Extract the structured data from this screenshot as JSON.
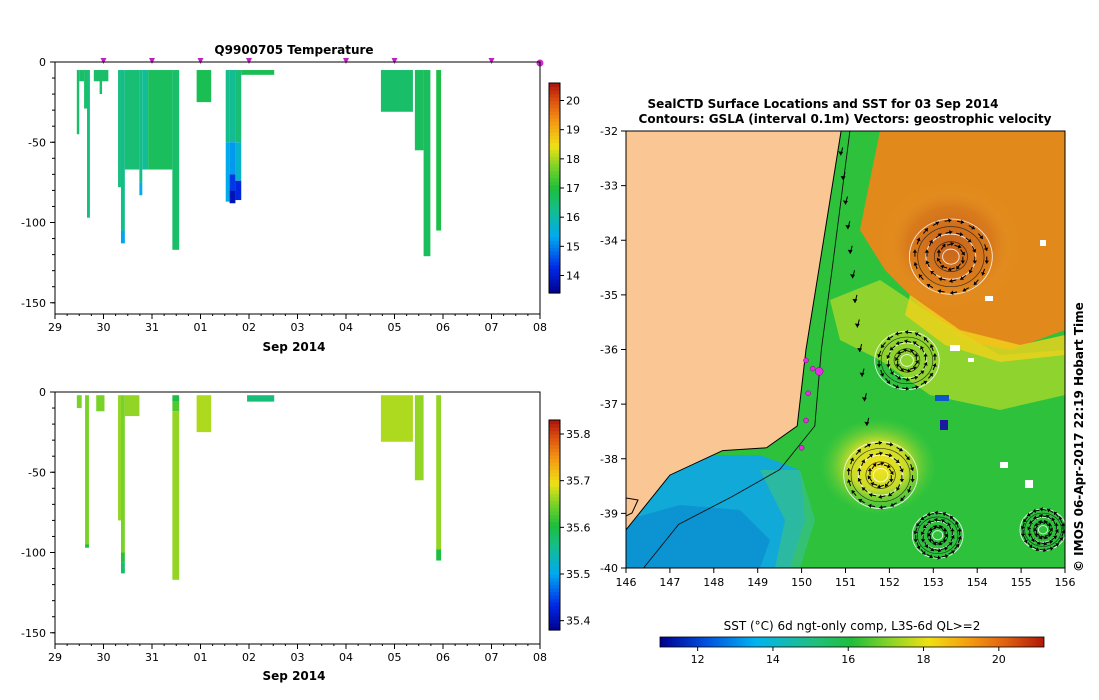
{
  "chart_data": [
    {
      "type": "heatmap",
      "title": "Q9900705  Temperature",
      "xlabel": "Sep 2014",
      "x_ticks": [
        "29",
        "30",
        "31",
        "01",
        "02",
        "03",
        "04",
        "05",
        "06",
        "07",
        "08"
      ],
      "xlim": [
        29,
        39
      ],
      "ylim": [
        -157,
        0
      ],
      "y_ticks": [
        0,
        -50,
        -100,
        -150
      ],
      "colorbar": {
        "min": 13.4,
        "max": 20.6,
        "ticks": [
          14,
          15,
          16,
          17,
          18,
          19,
          20
        ]
      },
      "surface_markers": [
        30,
        31,
        32,
        33,
        35,
        36,
        38,
        39
      ],
      "profiles": [
        {
          "x0": 29.45,
          "x1": 29.5,
          "top": -5,
          "bottom": -45,
          "value": 16.6
        },
        {
          "x0": 29.5,
          "x1": 29.6,
          "top": -5,
          "bottom": -12,
          "value": 16.6
        },
        {
          "x0": 29.6,
          "x1": 29.66,
          "top": -5,
          "bottom": -29,
          "value": 16.6
        },
        {
          "x0": 29.66,
          "x1": 29.72,
          "top": -5,
          "bottom": -97,
          "value": 16.4
        },
        {
          "x0": 29.8,
          "x1": 30.0,
          "top": -5,
          "bottom": -12,
          "value": 16.6
        },
        {
          "x0": 29.92,
          "x1": 29.97,
          "top": -5,
          "bottom": -20,
          "value": 16.6
        },
        {
          "x0": 30.0,
          "x1": 30.1,
          "top": -5,
          "bottom": -12,
          "value": 16.6
        },
        {
          "x0": 30.3,
          "x1": 30.36,
          "top": -5,
          "bottom": -78,
          "value": 16.4
        },
        {
          "x0": 30.36,
          "x1": 30.44,
          "top": -5,
          "bottom": -105,
          "value": 16.3
        },
        {
          "x0": 30.36,
          "x1": 30.44,
          "top": -105,
          "bottom": -113,
          "value": 15.3
        },
        {
          "x0": 30.44,
          "x1": 30.74,
          "top": -5,
          "bottom": -67,
          "value": 16.5
        },
        {
          "x0": 30.74,
          "x1": 30.8,
          "top": -5,
          "bottom": -75,
          "value": 16.3
        },
        {
          "x0": 30.74,
          "x1": 30.8,
          "top": -75,
          "bottom": -83,
          "value": 15.4
        },
        {
          "x0": 30.8,
          "x1": 30.92,
          "top": -5,
          "bottom": -67,
          "value": 16.2
        },
        {
          "x0": 30.92,
          "x1": 31.42,
          "top": -5,
          "bottom": -67,
          "value": 16.7
        },
        {
          "x0": 31.42,
          "x1": 31.56,
          "top": -5,
          "bottom": -117,
          "value": 16.6
        },
        {
          "x0": 31.92,
          "x1": 32.22,
          "top": -5,
          "bottom": -25,
          "value": 16.8
        },
        {
          "x0": 32.52,
          "x1": 32.6,
          "top": -5,
          "bottom": -50,
          "value": 16.3
        },
        {
          "x0": 32.52,
          "x1": 32.6,
          "top": -50,
          "bottom": -87,
          "value": 15.4
        },
        {
          "x0": 32.6,
          "x1": 32.72,
          "top": -5,
          "bottom": -50,
          "value": 16.2
        },
        {
          "x0": 32.6,
          "x1": 32.72,
          "top": -50,
          "bottom": -70,
          "value": 15.2
        },
        {
          "x0": 32.6,
          "x1": 32.72,
          "top": -70,
          "bottom": -80,
          "value": 14.4
        },
        {
          "x0": 32.6,
          "x1": 32.72,
          "top": -80,
          "bottom": -88,
          "value": 13.8
        },
        {
          "x0": 32.72,
          "x1": 32.84,
          "top": -5,
          "bottom": -50,
          "value": 16.5
        },
        {
          "x0": 32.72,
          "x1": 32.84,
          "top": -50,
          "bottom": -74,
          "value": 15.7
        },
        {
          "x0": 32.72,
          "x1": 32.84,
          "top": -74,
          "bottom": -86,
          "value": 14.2
        },
        {
          "x0": 32.84,
          "x1": 33.52,
          "top": -5,
          "bottom": -8,
          "value": 16.8
        },
        {
          "x0": 35.72,
          "x1": 36.38,
          "top": -5,
          "bottom": -31,
          "value": 16.6
        },
        {
          "x0": 36.42,
          "x1": 36.6,
          "top": -5,
          "bottom": -55,
          "value": 16.7
        },
        {
          "x0": 36.6,
          "x1": 36.74,
          "top": -5,
          "bottom": -121,
          "value": 16.7
        },
        {
          "x0": 36.86,
          "x1": 36.96,
          "top": -5,
          "bottom": -105,
          "value": 16.9
        }
      ]
    },
    {
      "type": "heatmap",
      "title": "",
      "xlabel": "Sep 2014",
      "x_ticks": [
        "29",
        "30",
        "31",
        "01",
        "02",
        "03",
        "04",
        "05",
        "06",
        "07",
        "08"
      ],
      "xlim": [
        29,
        39
      ],
      "ylim": [
        -157,
        0
      ],
      "y_ticks": [
        0,
        -50,
        -100,
        -150
      ],
      "colorbar": {
        "min": 35.38,
        "max": 35.83,
        "ticks": [
          35.4,
          35.5,
          35.6,
          35.7,
          35.8
        ]
      },
      "profiles": [
        {
          "x0": 29.45,
          "x1": 29.55,
          "top": -2,
          "bottom": -10,
          "value": 35.65
        },
        {
          "x0": 29.62,
          "x1": 29.7,
          "top": -2,
          "bottom": -95,
          "value": 35.65
        },
        {
          "x0": 29.62,
          "x1": 29.7,
          "top": -95,
          "bottom": -97,
          "value": 35.6
        },
        {
          "x0": 29.85,
          "x1": 30.02,
          "top": -2,
          "bottom": -12,
          "value": 35.65
        },
        {
          "x0": 30.3,
          "x1": 30.36,
          "top": -2,
          "bottom": -80,
          "value": 35.66
        },
        {
          "x0": 30.36,
          "x1": 30.44,
          "top": -2,
          "bottom": -100,
          "value": 35.65
        },
        {
          "x0": 30.36,
          "x1": 30.44,
          "top": -100,
          "bottom": -106,
          "value": 35.61
        },
        {
          "x0": 30.36,
          "x1": 30.44,
          "top": -106,
          "bottom": -113,
          "value": 35.58
        },
        {
          "x0": 30.44,
          "x1": 30.74,
          "top": -2,
          "bottom": -15,
          "value": 35.66
        },
        {
          "x0": 31.42,
          "x1": 31.56,
          "top": -2,
          "bottom": -6,
          "value": 35.6
        },
        {
          "x0": 31.42,
          "x1": 31.56,
          "top": -6,
          "bottom": -12,
          "value": 35.63
        },
        {
          "x0": 31.42,
          "x1": 31.56,
          "top": -12,
          "bottom": -117,
          "value": 35.66
        },
        {
          "x0": 31.92,
          "x1": 32.22,
          "top": -2,
          "bottom": -25,
          "value": 35.67
        },
        {
          "x0": 32.96,
          "x1": 33.52,
          "top": -2,
          "bottom": -6,
          "value": 35.57
        },
        {
          "x0": 35.72,
          "x1": 36.38,
          "top": -2,
          "bottom": -31,
          "value": 35.67
        },
        {
          "x0": 36.42,
          "x1": 36.6,
          "top": -2,
          "bottom": -55,
          "value": 35.66
        },
        {
          "x0": 36.86,
          "x1": 36.96,
          "top": -2,
          "bottom": -98,
          "value": 35.66
        },
        {
          "x0": 36.86,
          "x1": 36.96,
          "top": -98,
          "bottom": -105,
          "value": 35.6
        }
      ]
    },
    {
      "type": "heatmap",
      "title": "SealCTD Surface Locations and SST for 03 Sep 2014",
      "subtitle": "Contours: GSLA (interval 0.1m) Vectors: geostrophic velocity",
      "xlim": [
        146,
        156
      ],
      "ylim": [
        -40,
        -32
      ],
      "x_ticks": [
        146,
        147,
        148,
        149,
        150,
        151,
        152,
        153,
        154,
        155,
        156
      ],
      "y_ticks": [
        -32,
        -33,
        -34,
        -35,
        -36,
        -37,
        -38,
        -39,
        -40
      ],
      "colorbar": {
        "label": "SST (°C) 6d ngt-only comp, L3S-6d QL>=2",
        "min": 11,
        "max": 21.2,
        "ticks": [
          12,
          14,
          16,
          18,
          20
        ]
      },
      "coastline": [
        [
          150.9,
          -32
        ],
        [
          150.4,
          -34.5
        ],
        [
          150.1,
          -36
        ],
        [
          149.9,
          -37.4
        ],
        [
          149.2,
          -37.8
        ],
        [
          148.2,
          -37.85
        ],
        [
          147,
          -38.3
        ],
        [
          146.3,
          -39
        ],
        [
          146,
          -39.3
        ]
      ],
      "seal_positions": [
        [
          150.1,
          -36.2
        ],
        [
          150.25,
          -36.35
        ],
        [
          150.4,
          -36.4
        ],
        [
          150.15,
          -36.8
        ],
        [
          150.1,
          -37.3
        ],
        [
          150.0,
          -37.8
        ]
      ],
      "vortices": [
        {
          "lon": 153.4,
          "lat": -34.3,
          "radius": 0.9,
          "sense": "anticyclonic"
        },
        {
          "lon": 151.8,
          "lat": -38.3,
          "radius": 0.8,
          "sense": "anticyclonic"
        },
        {
          "lon": 152.4,
          "lat": -36.2,
          "radius": 0.7,
          "sense": "cyclonic"
        },
        {
          "lon": 153.1,
          "lat": -39.4,
          "radius": 0.55,
          "sense": "cyclonic"
        },
        {
          "lon": 155.5,
          "lat": -39.3,
          "radius": 0.5,
          "sense": "cyclonic"
        }
      ]
    }
  ],
  "credit": "© IMOS 06-Apr-2017 22:19 Hobart Time"
}
